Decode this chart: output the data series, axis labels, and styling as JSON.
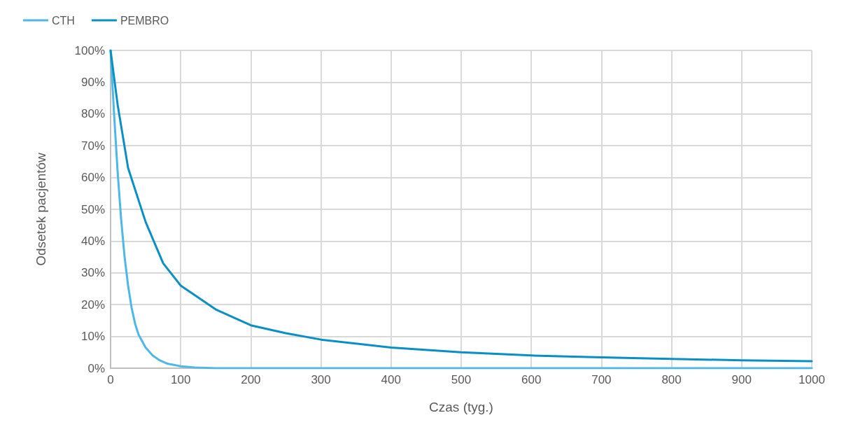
{
  "chart_data": {
    "type": "line",
    "xlabel": "Czas (tyg.)",
    "ylabel": "Odsetek pacjentów",
    "xlim": [
      0,
      1000
    ],
    "xticks": [
      0,
      100,
      200,
      300,
      400,
      500,
      600,
      700,
      800,
      900,
      1000
    ],
    "ylim": [
      0,
      100
    ],
    "yticks": [
      {
        "value": 0,
        "label": "0%"
      },
      {
        "value": 10,
        "label": "10%"
      },
      {
        "value": 20,
        "label": "20%"
      },
      {
        "value": 30,
        "label": "30%"
      },
      {
        "value": 40,
        "label": "40%"
      },
      {
        "value": 50,
        "label": "50%"
      },
      {
        "value": 60,
        "label": "60%"
      },
      {
        "value": 70,
        "label": "70%"
      },
      {
        "value": 80,
        "label": "80%"
      },
      {
        "value": 90,
        "label": "90%"
      },
      {
        "value": 100,
        "label": "100%"
      }
    ],
    "grid": true,
    "legend": "top left",
    "marker": "none",
    "line_style": "solid",
    "series": [
      {
        "name": "CTH",
        "color": "#4db8e8",
        "x": [
          0,
          5,
          10,
          15,
          20,
          25,
          30,
          35,
          40,
          50,
          60,
          70,
          80,
          100,
          120,
          150,
          200,
          300,
          400,
          500,
          600,
          700,
          800,
          900,
          1000
        ],
        "values": [
          100,
          80,
          62,
          47,
          35,
          26,
          19,
          14,
          10.5,
          6.5,
          4,
          2.5,
          1.5,
          0.6,
          0.2,
          0,
          0,
          0,
          0,
          0,
          0,
          0,
          0,
          0,
          0
        ]
      },
      {
        "name": "PEMBRO",
        "color": "#0a8fc4",
        "x": [
          0,
          10,
          25,
          50,
          75,
          100,
          150,
          200,
          250,
          300,
          400,
          500,
          600,
          700,
          800,
          900,
          1000
        ],
        "values": [
          100,
          83,
          63,
          46,
          33,
          26,
          18.5,
          13.5,
          11,
          9,
          6.5,
          5,
          4,
          3.4,
          2.9,
          2.5,
          2.2
        ]
      }
    ]
  }
}
